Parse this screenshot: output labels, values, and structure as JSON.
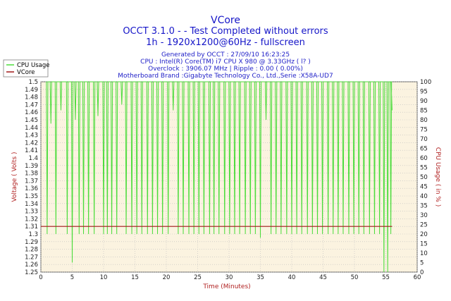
{
  "header": {
    "title": "VCore",
    "line2": "OCCT 3.1.0 -  - Test Completed without errors",
    "line3": "1h - 1920x1200@60Hz - fullscreen",
    "meta": [
      "Generated by OCCT : 27/09/10 16:23:25",
      "CPU : Intel(R) Core(TM) i7 CPU X 980 @ 3.33GHz (  l? )",
      "Overclock : 3906.07 MHz | Ripple : 0.00 ( 0.00%)",
      "Motherboard Brand :Gigabyte Technology Co., Ltd.,Serie :X58A-UD7"
    ]
  },
  "colors": {
    "cpu": "#4cdc3c",
    "vcore": "#a01818",
    "plot_bg": "#fbf3e0",
    "grid": "#bdbdbd"
  },
  "chart_data": {
    "type": "line",
    "xlabel": "Time (Minutes)",
    "ylabel_left": "Voltage ( Volts )",
    "ylabel_right": "CPU Usage ( in % )",
    "xlim": [
      0,
      60
    ],
    "ylim_left": [
      1.25,
      1.5
    ],
    "ylim_right": [
      0,
      100
    ],
    "x_ticks": [
      0,
      5,
      10,
      15,
      20,
      25,
      30,
      35,
      40,
      45,
      50,
      55,
      60
    ],
    "y_ticks_left": [
      "1.25",
      "1.26",
      "1.27",
      "1.28",
      "1.29",
      "1.3",
      "1.31",
      "1.32",
      "1.33",
      "1.34",
      "1.35",
      "1.36",
      "1.37",
      "1.38",
      "1.39",
      "1.4",
      "1.41",
      "1.42",
      "1.43",
      "1.44",
      "1.45",
      "1.46",
      "1.47",
      "1.48",
      "1.49",
      "1.5"
    ],
    "y_ticks_right": [
      0,
      5,
      10,
      15,
      20,
      25,
      30,
      35,
      40,
      45,
      50,
      55,
      60,
      65,
      70,
      75,
      80,
      85,
      90,
      95,
      100
    ],
    "grid": true,
    "legend": "top-left, outside",
    "series": [
      {
        "name": "CPU Usage",
        "axis": "right",
        "baseline": 100,
        "dips": [
          {
            "x": 1.0,
            "y": 20
          },
          {
            "x": 1.6,
            "y": 78
          },
          {
            "x": 2.4,
            "y": 20
          },
          {
            "x": 3.2,
            "y": 85
          },
          {
            "x": 4.2,
            "y": 20
          },
          {
            "x": 5.0,
            "y": 5
          },
          {
            "x": 5.5,
            "y": 80
          },
          {
            "x": 6.1,
            "y": 20
          },
          {
            "x": 6.8,
            "y": 20
          },
          {
            "x": 7.6,
            "y": 20
          },
          {
            "x": 8.5,
            "y": 20
          },
          {
            "x": 9.1,
            "y": 82
          },
          {
            "x": 10.0,
            "y": 20
          },
          {
            "x": 10.6,
            "y": 20
          },
          {
            "x": 11.3,
            "y": 20
          },
          {
            "x": 12.1,
            "y": 20
          },
          {
            "x": 12.9,
            "y": 88
          },
          {
            "x": 13.6,
            "y": 20
          },
          {
            "x": 14.5,
            "y": 20
          },
          {
            "x": 15.3,
            "y": 20
          },
          {
            "x": 16.1,
            "y": 20
          },
          {
            "x": 17.0,
            "y": 20
          },
          {
            "x": 17.8,
            "y": 20
          },
          {
            "x": 18.6,
            "y": 20
          },
          {
            "x": 19.4,
            "y": 20
          },
          {
            "x": 20.3,
            "y": 20
          },
          {
            "x": 21.1,
            "y": 85
          },
          {
            "x": 21.9,
            "y": 20
          },
          {
            "x": 22.7,
            "y": 20
          },
          {
            "x": 23.6,
            "y": 20
          },
          {
            "x": 24.4,
            "y": 20
          },
          {
            "x": 25.2,
            "y": 20
          },
          {
            "x": 26.0,
            "y": 20
          },
          {
            "x": 26.9,
            "y": 20
          },
          {
            "x": 27.6,
            "y": 20
          },
          {
            "x": 28.4,
            "y": 20
          },
          {
            "x": 29.3,
            "y": 20
          },
          {
            "x": 30.1,
            "y": 20
          },
          {
            "x": 30.9,
            "y": 20
          },
          {
            "x": 31.7,
            "y": 20
          },
          {
            "x": 32.6,
            "y": 20
          },
          {
            "x": 33.4,
            "y": 20
          },
          {
            "x": 34.2,
            "y": 20
          },
          {
            "x": 35.0,
            "y": 18
          },
          {
            "x": 35.9,
            "y": 80
          },
          {
            "x": 36.7,
            "y": 20
          },
          {
            "x": 37.5,
            "y": 20
          },
          {
            "x": 38.3,
            "y": 20
          },
          {
            "x": 39.2,
            "y": 20
          },
          {
            "x": 40.0,
            "y": 20
          },
          {
            "x": 40.8,
            "y": 20
          },
          {
            "x": 41.6,
            "y": 20
          },
          {
            "x": 42.5,
            "y": 20
          },
          {
            "x": 43.3,
            "y": 20
          },
          {
            "x": 44.1,
            "y": 20
          },
          {
            "x": 44.9,
            "y": 20
          },
          {
            "x": 45.8,
            "y": 20
          },
          {
            "x": 46.6,
            "y": 20
          },
          {
            "x": 47.4,
            "y": 20
          },
          {
            "x": 48.2,
            "y": 20
          },
          {
            "x": 49.1,
            "y": 20
          },
          {
            "x": 49.9,
            "y": 20
          },
          {
            "x": 50.7,
            "y": 20
          },
          {
            "x": 51.5,
            "y": 20
          },
          {
            "x": 52.4,
            "y": 20
          },
          {
            "x": 53.2,
            "y": 20
          },
          {
            "x": 54.0,
            "y": 20
          },
          {
            "x": 54.7,
            "y": 0
          },
          {
            "x": 55.3,
            "y": 0
          },
          {
            "x": 55.8,
            "y": 20
          }
        ],
        "end": {
          "x": 56.0,
          "y": 85
        }
      },
      {
        "name": "VCore",
        "axis": "left",
        "x": [
          0,
          56
        ],
        "y": [
          1.31,
          1.31
        ]
      }
    ]
  }
}
